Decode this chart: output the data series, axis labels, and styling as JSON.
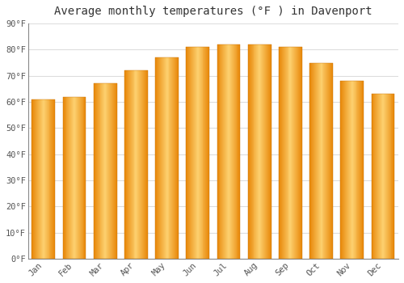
{
  "title": "Average monthly temperatures (°F ) in Davenport",
  "months": [
    "Jan",
    "Feb",
    "Mar",
    "Apr",
    "May",
    "Jun",
    "Jul",
    "Aug",
    "Sep",
    "Oct",
    "Nov",
    "Dec"
  ],
  "values": [
    61,
    62,
    67,
    72,
    77,
    81,
    82,
    82,
    81,
    75,
    68,
    63
  ],
  "bar_color_main": "#FCA823",
  "bar_color_light": "#FDD070",
  "bar_color_dark": "#E8880A",
  "background_color": "#FFFFFF",
  "grid_color": "#DDDDDD",
  "ylim": [
    0,
    90
  ],
  "yticks": [
    0,
    10,
    20,
    30,
    40,
    50,
    60,
    70,
    80,
    90
  ],
  "ytick_labels": [
    "0°F",
    "10°F",
    "20°F",
    "30°F",
    "40°F",
    "50°F",
    "60°F",
    "70°F",
    "80°F",
    "90°F"
  ],
  "title_fontsize": 10,
  "tick_fontsize": 7.5,
  "tick_font_family": "monospace"
}
